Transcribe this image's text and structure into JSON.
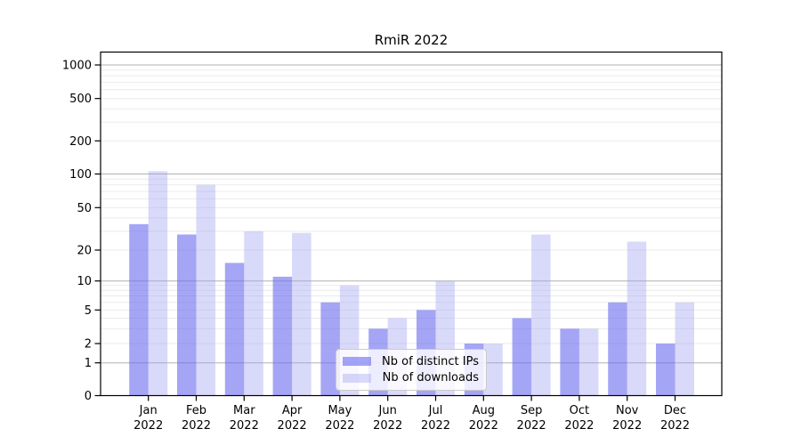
{
  "chart_data": {
    "type": "bar",
    "title": "RmiR 2022",
    "categories": [
      "Jan 2022",
      "Feb 2022",
      "Mar 2022",
      "Apr 2022",
      "May 2022",
      "Jun 2022",
      "Jul 2022",
      "Aug 2022",
      "Sep 2022",
      "Oct 2022",
      "Nov 2022",
      "Dec 2022"
    ],
    "series": [
      {
        "name": "Nb of distinct IPs",
        "color": "rgba(110,110,240,0.62)",
        "approx_hex": "#a5a5f6",
        "values": [
          35,
          28,
          15,
          11,
          6,
          3,
          5,
          2,
          4,
          3,
          6,
          2
        ]
      },
      {
        "name": "Nb of downloads",
        "color": "rgba(160,160,240,0.40)",
        "approx_hex": "#d9d9f9",
        "values": [
          106,
          80,
          30,
          29,
          9,
          4,
          10,
          2,
          28,
          3,
          24,
          6
        ]
      }
    ],
    "xlabel": "",
    "ylabel": "",
    "yscale": "pseudo-log with 0 baseline",
    "yticks": [
      0,
      1,
      2,
      5,
      10,
      20,
      50,
      100,
      200,
      500,
      1000
    ],
    "ylim": [
      0,
      1250
    ],
    "grid": true,
    "gridlines": {
      "major": [
        1,
        10,
        100,
        1000
      ],
      "minor": [
        2,
        3,
        4,
        5,
        6,
        7,
        8,
        9,
        20,
        30,
        40,
        50,
        60,
        70,
        80,
        90,
        200,
        300,
        400,
        500,
        600,
        700,
        800,
        900
      ]
    },
    "legend_position": "lower center",
    "style": {
      "grid_major_color": "#b0b0b0",
      "grid_minor_color": "#ebebeb",
      "spine_color": "#000000",
      "text_color": "#000000",
      "background": "#ffffff"
    }
  }
}
